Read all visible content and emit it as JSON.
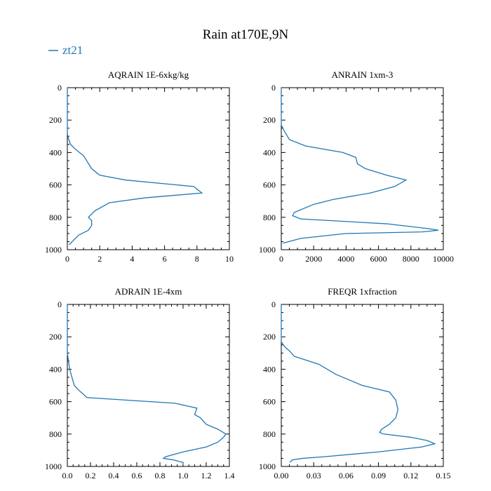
{
  "figure": {
    "title": "Rain at170E,9N",
    "legend": {
      "label": "zt21",
      "color": "#1f77b4",
      "placement": "top-left"
    }
  },
  "chart_data": [
    {
      "type": "line",
      "title": "AQRAIN  1E-6xkg/kg",
      "xlim": [
        0,
        10
      ],
      "ylim": [
        1000,
        0
      ],
      "xticks": [
        0,
        2,
        4,
        6,
        8,
        10
      ],
      "xtick_labels": [
        "0",
        "2",
        "4",
        "6",
        "8",
        "10"
      ],
      "yticks": [
        0,
        200,
        400,
        600,
        800,
        1000
      ],
      "ytick_labels": [
        "0",
        "200",
        "400",
        "600",
        "800",
        "1000"
      ],
      "series": [
        {
          "name": "zt21",
          "color": "#1f77b4",
          "x": [
            0,
            0,
            0.05,
            0.2,
            0.5,
            1.0,
            1.5,
            2.0,
            3.6,
            7.8,
            8.3,
            4.8,
            2.6,
            1.7,
            1.3,
            1.5,
            1.5,
            1.3,
            0.7,
            0.1
          ],
          "y": [
            0,
            280,
            310,
            350,
            380,
            420,
            500,
            540,
            570,
            610,
            650,
            680,
            710,
            760,
            800,
            820,
            850,
            880,
            910,
            970
          ]
        }
      ]
    },
    {
      "type": "line",
      "title": "ANRAIN  1xm-3",
      "xlim": [
        0,
        10000
      ],
      "ylim": [
        1000,
        0
      ],
      "xticks": [
        0,
        2000,
        4000,
        6000,
        8000,
        10000
      ],
      "xtick_labels": [
        "0",
        "2000",
        "4000",
        "6000",
        "8000",
        "10000"
      ],
      "yticks": [
        0,
        200,
        400,
        600,
        800,
        1000
      ],
      "ytick_labels": [
        "0",
        "200",
        "400",
        "600",
        "800",
        "1000"
      ],
      "series": [
        {
          "name": "zt21",
          "color": "#1f77b4",
          "x": [
            0,
            0,
            200,
            500,
            1500,
            3800,
            4600,
            4700,
            5200,
            6500,
            7700,
            7000,
            5500,
            3200,
            2000,
            800,
            700,
            1200,
            6500,
            9100,
            9700,
            8700,
            4000,
            1200,
            100
          ],
          "y": [
            0,
            230,
            270,
            320,
            360,
            400,
            430,
            470,
            500,
            540,
            570,
            610,
            650,
            690,
            720,
            770,
            790,
            810,
            840,
            870,
            880,
            890,
            900,
            930,
            960
          ]
        }
      ]
    },
    {
      "type": "line",
      "title": "ADRAIN  1E-4xm",
      "xlim": [
        0,
        1.4
      ],
      "ylim": [
        1000,
        0
      ],
      "xticks": [
        0,
        0.2,
        0.4,
        0.6,
        0.8,
        1.0,
        1.2,
        1.4
      ],
      "xtick_labels": [
        "0.0",
        "0.2",
        "0.4",
        "0.6",
        "0.8",
        "1.0",
        "1.2",
        "1.4"
      ],
      "yticks": [
        0,
        200,
        400,
        600,
        800,
        1000
      ],
      "ytick_labels": [
        "0",
        "200",
        "400",
        "600",
        "800",
        "1000"
      ],
      "series": [
        {
          "name": "zt21",
          "color": "#1f77b4",
          "x": [
            0,
            0,
            0.01,
            0.02,
            0.04,
            0.06,
            0.1,
            0.17,
            0.93,
            1.12,
            1.1,
            1.15,
            1.2,
            1.3,
            1.37,
            1.35,
            1.3,
            1.2,
            1.0,
            0.85,
            0.83,
            0.92,
            1.0,
            1.0
          ],
          "y": [
            0,
            300,
            350,
            400,
            450,
            500,
            530,
            575,
            610,
            640,
            680,
            700,
            740,
            770,
            800,
            820,
            850,
            880,
            910,
            940,
            950,
            960,
            975,
            990
          ]
        }
      ]
    },
    {
      "type": "line",
      "title": "FREQR  1xfraction",
      "xlim": [
        0,
        0.15
      ],
      "ylim": [
        1000,
        0
      ],
      "xticks": [
        0,
        0.03,
        0.06,
        0.09,
        0.12,
        0.15
      ],
      "xtick_labels": [
        "0.00",
        "0.03",
        "0.06",
        "0.09",
        "0.12",
        "0.15"
      ],
      "yticks": [
        0,
        200,
        400,
        600,
        800,
        1000
      ],
      "ytick_labels": [
        "0",
        "200",
        "400",
        "600",
        "800",
        "1000"
      ],
      "series": [
        {
          "name": "zt21",
          "color": "#1f77b4",
          "x": [
            0,
            0,
            0.003,
            0.008,
            0.012,
            0.035,
            0.05,
            0.075,
            0.1,
            0.106,
            0.108,
            0.106,
            0.1,
            0.093,
            0.091,
            0.095,
            0.12,
            0.135,
            0.142,
            0.13,
            0.09,
            0.04,
            0.02,
            0.01,
            0.008
          ],
          "y": [
            0,
            230,
            260,
            290,
            320,
            370,
            430,
            500,
            540,
            590,
            650,
            700,
            740,
            770,
            790,
            800,
            820,
            840,
            860,
            880,
            910,
            940,
            950,
            960,
            975
          ]
        }
      ]
    }
  ]
}
